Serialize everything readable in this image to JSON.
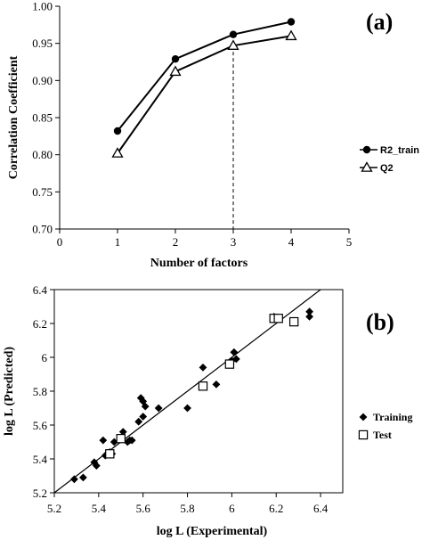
{
  "chart_data": [
    {
      "type": "line",
      "panel_label": "(a)",
      "xlabel": "Number of factors",
      "ylabel": "Correlation Coefficient",
      "xlim": [
        0,
        5
      ],
      "ylim": [
        0.7,
        1.0
      ],
      "x_ticks": [
        "0",
        "1",
        "2",
        "3",
        "4",
        "5"
      ],
      "y_ticks": [
        "0.70",
        "0.75",
        "0.80",
        "0.85",
        "0.90",
        "0.95",
        "1.00"
      ],
      "x": [
        1,
        2,
        3,
        4
      ],
      "series": [
        {
          "name": "R2_train",
          "marker": "filled-circle",
          "values": [
            0.832,
            0.929,
            0.962,
            0.979
          ]
        },
        {
          "name": "Q2",
          "marker": "open-triangle",
          "values": [
            0.802,
            0.912,
            0.947,
            0.96
          ]
        }
      ],
      "annotation": {
        "type": "dashed-vertical-line",
        "x": 3
      },
      "grid": false,
      "legend_position": "right"
    },
    {
      "type": "scatter",
      "panel_label": "(b)",
      "xlabel": "log L (Experimental)",
      "ylabel": "log L (Predicted)",
      "xlim": [
        5.2,
        6.5
      ],
      "ylim": [
        5.2,
        6.4
      ],
      "x_ticks": [
        "5.2",
        "5.4",
        "5.6",
        "5.8",
        "6",
        "6.2",
        "6.4"
      ],
      "y_ticks": [
        "5.2",
        "5.4",
        "5.6",
        "5.8",
        "6",
        "6.2",
        "6.4"
      ],
      "series": [
        {
          "name": "Training",
          "marker": "filled-diamond",
          "points": [
            [
              5.29,
              5.28
            ],
            [
              5.33,
              5.29
            ],
            [
              5.38,
              5.38
            ],
            [
              5.39,
              5.36
            ],
            [
              5.42,
              5.51
            ],
            [
              5.43,
              5.42
            ],
            [
              5.45,
              5.44
            ],
            [
              5.46,
              5.43
            ],
            [
              5.47,
              5.5
            ],
            [
              5.5,
              5.52
            ],
            [
              5.51,
              5.56
            ],
            [
              5.53,
              5.5
            ],
            [
              5.54,
              5.51
            ],
            [
              5.55,
              5.51
            ],
            [
              5.58,
              5.62
            ],
            [
              5.59,
              5.76
            ],
            [
              5.6,
              5.74
            ],
            [
              5.6,
              5.65
            ],
            [
              5.61,
              5.71
            ],
            [
              5.67,
              5.7
            ],
            [
              5.8,
              5.7
            ],
            [
              5.87,
              5.94
            ],
            [
              5.93,
              5.84
            ],
            [
              6.0,
              5.98
            ],
            [
              6.01,
              6.03
            ],
            [
              6.02,
              5.99
            ],
            [
              6.19,
              6.24
            ],
            [
              6.2,
              6.23
            ],
            [
              6.35,
              6.27
            ],
            [
              6.35,
              6.24
            ]
          ]
        },
        {
          "name": "Test",
          "marker": "open-square",
          "points": [
            [
              5.45,
              5.43
            ],
            [
              5.5,
              5.52
            ],
            [
              5.87,
              5.83
            ],
            [
              5.99,
              5.96
            ],
            [
              6.19,
              6.23
            ],
            [
              6.21,
              6.23
            ],
            [
              6.28,
              6.21
            ]
          ]
        }
      ],
      "reference_line": {
        "type": "y=x"
      },
      "grid": false,
      "legend_position": "right"
    }
  ]
}
